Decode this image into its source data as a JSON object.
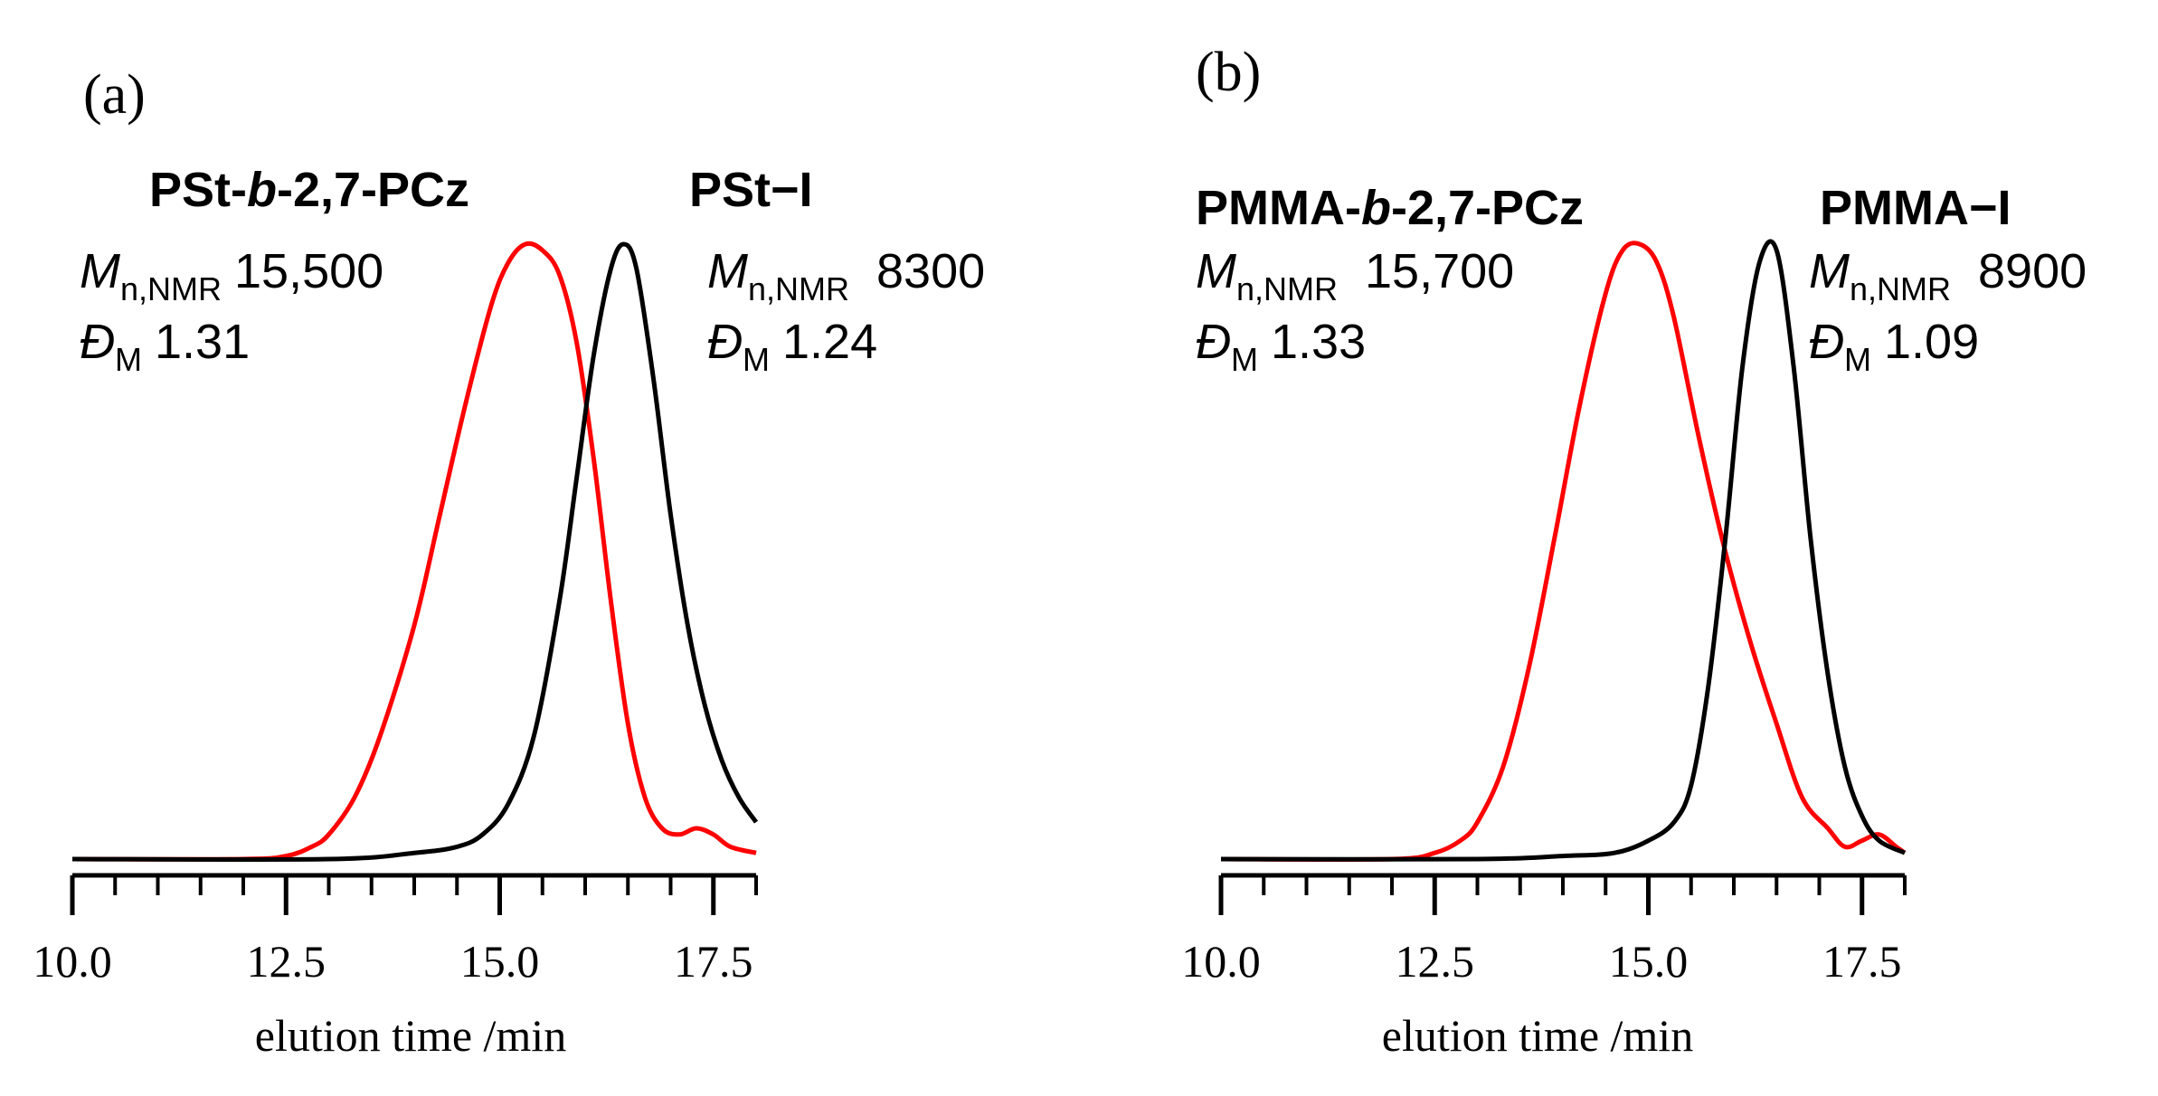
{
  "chart_data": [
    {
      "type": "line",
      "panel_label": "(a)",
      "xlabel": "elution time /min",
      "ylabel": "",
      "xlim": [
        10.0,
        18.0
      ],
      "x_tick_labels": [
        "10.0",
        "12.5",
        "15.0",
        "17.5"
      ],
      "x_tick_values": [
        10.0,
        12.5,
        15.0,
        17.5
      ],
      "minor_tick_step": 0.5,
      "series": [
        {
          "name": "PSt-b-2,7-PCz",
          "color": "#ff0000",
          "x": [
            10.0,
            12.0,
            12.5,
            12.8,
            13.0,
            13.3,
            13.6,
            14.0,
            14.3,
            14.6,
            14.9,
            15.1,
            15.3,
            15.5,
            15.7,
            15.9,
            16.1,
            16.3,
            16.5,
            16.7,
            16.9,
            17.1,
            17.3,
            17.5,
            17.7,
            18.0
          ],
          "y": [
            0.0,
            0.0,
            0.005,
            0.02,
            0.04,
            0.1,
            0.2,
            0.38,
            0.56,
            0.74,
            0.9,
            0.97,
            1.0,
            0.99,
            0.95,
            0.84,
            0.65,
            0.42,
            0.22,
            0.1,
            0.05,
            0.04,
            0.05,
            0.04,
            0.02,
            0.01
          ]
        },
        {
          "name": "PSt−I",
          "color": "#000000",
          "x": [
            10.0,
            13.0,
            14.0,
            14.5,
            14.8,
            15.1,
            15.4,
            15.7,
            15.9,
            16.1,
            16.3,
            16.45,
            16.6,
            16.8,
            17.0,
            17.2,
            17.4,
            17.6,
            17.8,
            18.0
          ],
          "y": [
            0.0,
            0.0,
            0.01,
            0.02,
            0.04,
            0.09,
            0.2,
            0.42,
            0.62,
            0.82,
            0.96,
            1.0,
            0.96,
            0.78,
            0.56,
            0.38,
            0.25,
            0.16,
            0.1,
            0.06
          ]
        }
      ],
      "annotations": [
        {
          "sample": "PSt-",
          "sample_italic": "b",
          "sample_rest": "-2,7-PCz",
          "mn_symbol": "M",
          "mn_sub": "n,NMR",
          "mn_value": "15,500",
          "d_symbol": "Đ",
          "d_sub": "M",
          "d_value": "1.31"
        },
        {
          "sample": "PSt−I",
          "mn_symbol": "M",
          "mn_sub": "n,NMR",
          "mn_value": "8300",
          "d_symbol": "Đ",
          "d_sub": "M",
          "d_value": "1.24"
        }
      ]
    },
    {
      "type": "line",
      "panel_label": "(b)",
      "xlabel": "elution time /min",
      "ylabel": "",
      "xlim": [
        10.0,
        18.0
      ],
      "x_tick_labels": [
        "10.0",
        "12.5",
        "15.0",
        "17.5"
      ],
      "x_tick_values": [
        10.0,
        12.5,
        15.0,
        17.5
      ],
      "minor_tick_step": 0.5,
      "series": [
        {
          "name": "PMMA-b-2,7-PCz",
          "color": "#ff0000",
          "x": [
            10.0,
            12.0,
            12.5,
            12.8,
            13.0,
            13.3,
            13.6,
            13.9,
            14.2,
            14.5,
            14.7,
            14.9,
            15.1,
            15.3,
            15.6,
            15.9,
            16.2,
            16.5,
            16.8,
            17.1,
            17.3,
            17.5,
            17.7,
            17.9,
            18.0
          ],
          "y": [
            0.0,
            0.0,
            0.01,
            0.03,
            0.06,
            0.15,
            0.31,
            0.52,
            0.74,
            0.92,
            0.99,
            1.0,
            0.97,
            0.88,
            0.68,
            0.5,
            0.35,
            0.22,
            0.1,
            0.05,
            0.02,
            0.03,
            0.04,
            0.02,
            0.01
          ]
        },
        {
          "name": "PMMA−I",
          "color": "#000000",
          "x": [
            10.0,
            13.0,
            14.0,
            14.6,
            15.0,
            15.3,
            15.5,
            15.7,
            15.9,
            16.1,
            16.3,
            16.5,
            16.7,
            16.9,
            17.1,
            17.3,
            17.5,
            17.7,
            18.0
          ],
          "y": [
            0.0,
            0.0,
            0.005,
            0.01,
            0.03,
            0.06,
            0.12,
            0.28,
            0.52,
            0.8,
            0.97,
            0.99,
            0.8,
            0.52,
            0.3,
            0.15,
            0.07,
            0.03,
            0.01
          ]
        }
      ],
      "annotations": [
        {
          "sample": "PMMA-",
          "sample_italic": "b",
          "sample_rest": "-2,7-PCz",
          "mn_symbol": "M",
          "mn_sub": "n,NMR",
          "mn_value": "15,700",
          "d_symbol": "Đ",
          "d_sub": "M",
          "d_value": "1.33"
        },
        {
          "sample": "PMMA−I",
          "mn_symbol": "M",
          "mn_sub": "n,NMR",
          "mn_value": "8900",
          "d_symbol": "Đ",
          "d_sub": "M",
          "d_value": "1.09"
        }
      ]
    }
  ]
}
